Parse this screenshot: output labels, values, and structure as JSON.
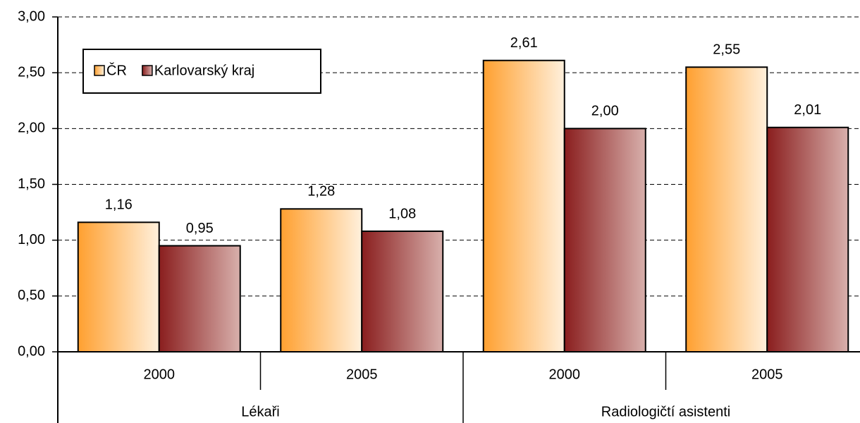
{
  "chart_data": {
    "type": "bar",
    "categories": [
      "2000",
      "2005",
      "2000",
      "2005"
    ],
    "groups": [
      "Lékaři",
      "Radiologičtí asistenti"
    ],
    "series": [
      {
        "name": "ČR",
        "color": "#ffa030",
        "values": [
          1.16,
          1.28,
          2.61,
          2.55
        ],
        "value_labels": [
          "1,16",
          "1,28",
          "2,61",
          "2,55"
        ]
      },
      {
        "name": "Karlovarský kraj",
        "color": "#8a1e1e",
        "values": [
          0.95,
          1.08,
          2.0,
          2.01
        ],
        "value_labels": [
          "0,95",
          "1,08",
          "2,00",
          "2,01"
        ]
      }
    ],
    "ylim": [
      0,
      3
    ],
    "yticks": [
      {
        "value": 0,
        "label": "0,00"
      },
      {
        "value": 0.5,
        "label": "0,50"
      },
      {
        "value": 1,
        "label": "1,00"
      },
      {
        "value": 1.5,
        "label": "1,50"
      },
      {
        "value": 2,
        "label": "2,00"
      },
      {
        "value": 2.5,
        "label": "2,50"
      },
      {
        "value": 3,
        "label": "3,00"
      }
    ],
    "grid": true,
    "legend": "upper left"
  }
}
